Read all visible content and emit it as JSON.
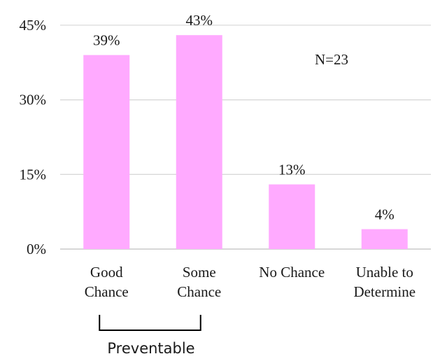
{
  "chart_data": {
    "type": "bar",
    "categories": [
      [
        "Good",
        "Chance"
      ],
      [
        "Some",
        "Chance"
      ],
      [
        "No Chance"
      ],
      [
        "Unable to",
        "Determine"
      ]
    ],
    "values": [
      39,
      43,
      13,
      4
    ],
    "data_labels": [
      "39%",
      "43%",
      "13%",
      "4%"
    ],
    "ylim": [
      0,
      45
    ],
    "yticks": [
      "0%",
      "15%",
      "30%",
      "45%"
    ],
    "ytick_values": [
      0,
      15,
      30,
      45
    ],
    "grid": true,
    "bar_color": "#FFAAFF",
    "annotation": "N=23",
    "group_bracket": {
      "label": "Preventable",
      "spans": [
        0,
        1
      ]
    }
  }
}
